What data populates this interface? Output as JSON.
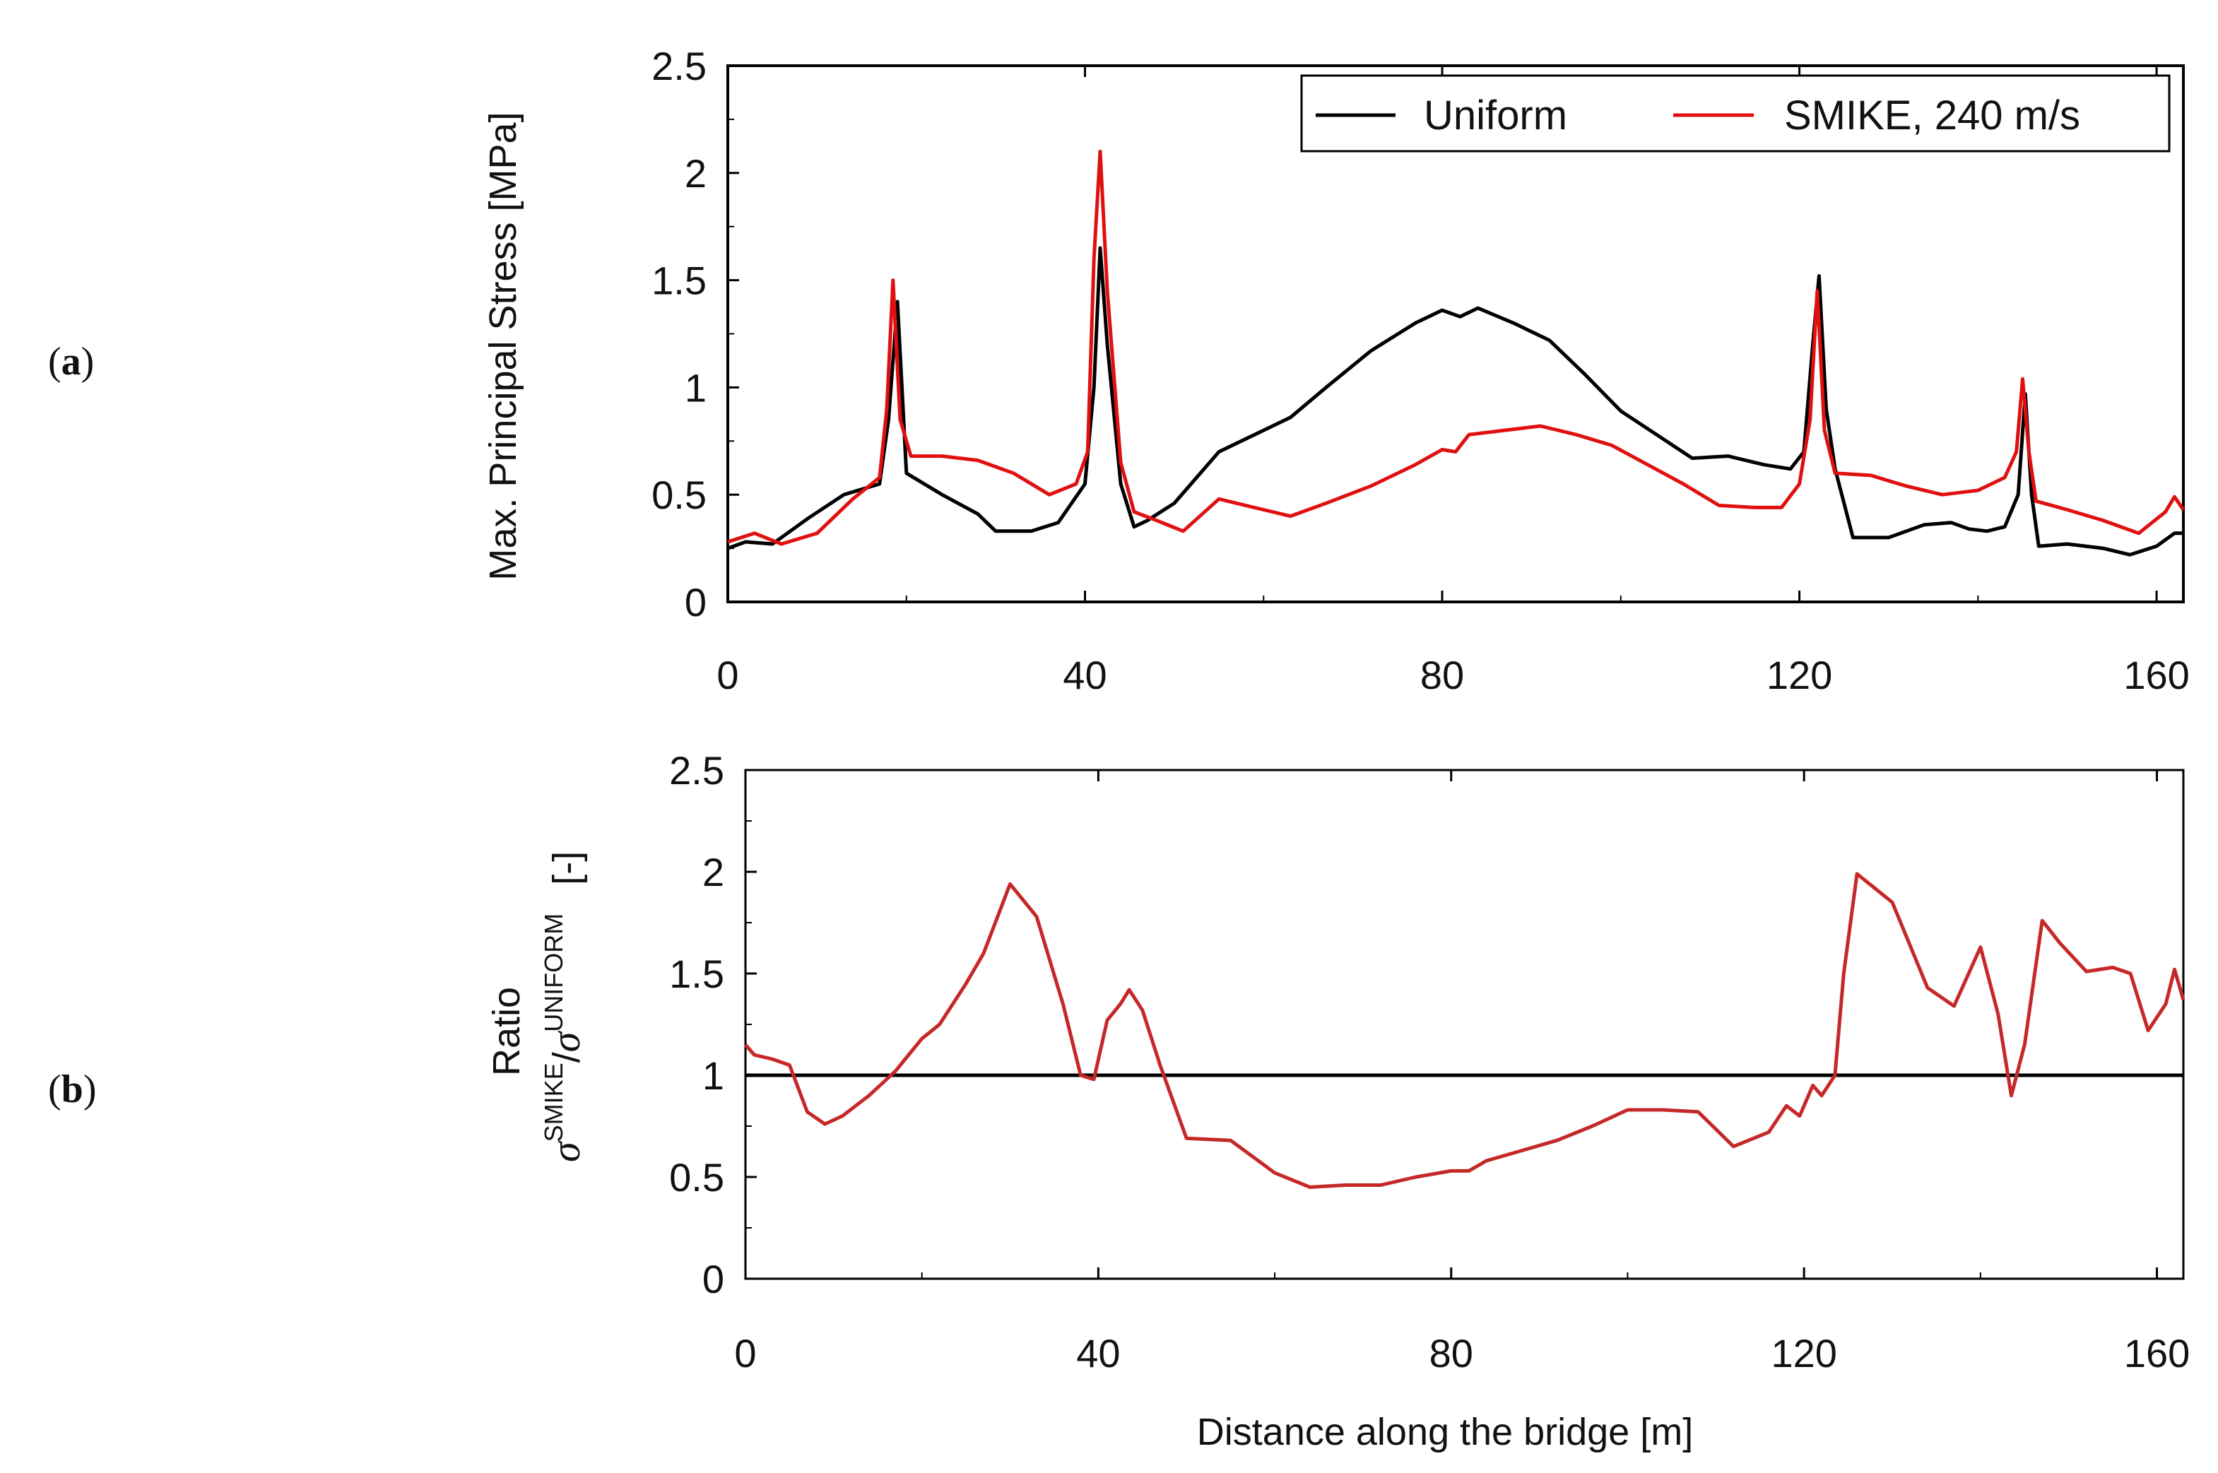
{
  "chart_data": [
    {
      "type": "line",
      "panel_label": "(a)",
      "panel_letter": "a",
      "xlabel": "",
      "ylabel": "Max. Principal Stress [MPa]",
      "xlim": [
        0,
        163
      ],
      "ylim": [
        0,
        2.5
      ],
      "xticks": [
        0,
        40,
        80,
        120,
        160
      ],
      "xtick_labels": [
        "0",
        "40",
        "80",
        "120",
        "160"
      ],
      "yticks": [
        0,
        0.5,
        1,
        1.5,
        2,
        2.5
      ],
      "ytick_labels": [
        "0",
        "0.5",
        "1",
        "1.5",
        "2",
        "2.5"
      ],
      "legend_position": "top-right",
      "series": [
        {
          "name": "Uniform",
          "color": "#000000",
          "x": [
            0,
            2,
            5,
            9,
            13,
            17,
            18,
            19,
            20,
            24,
            28,
            30,
            34,
            37,
            40,
            41,
            41.7,
            42.5,
            44,
            45.5,
            47,
            50,
            55,
            60,
            63,
            67,
            72,
            77,
            80,
            82,
            84,
            88,
            92,
            96,
            100,
            104,
            108,
            112,
            116,
            119,
            120.5,
            121.5,
            122.2,
            123,
            124,
            126,
            130,
            134,
            137,
            139,
            141,
            143,
            144.5,
            145.3,
            146,
            146.8,
            150,
            154,
            157,
            160,
            162,
            163
          ],
          "y": [
            0.25,
            0.28,
            0.27,
            0.39,
            0.5,
            0.55,
            0.85,
            1.4,
            0.6,
            0.5,
            0.41,
            0.33,
            0.33,
            0.37,
            0.55,
            1.0,
            1.65,
            1.2,
            0.55,
            0.35,
            0.38,
            0.46,
            0.7,
            0.8,
            0.86,
            1.0,
            1.17,
            1.3,
            1.36,
            1.33,
            1.37,
            1.3,
            1.22,
            1.06,
            0.89,
            0.78,
            0.67,
            0.68,
            0.64,
            0.62,
            0.7,
            1.2,
            1.52,
            0.9,
            0.62,
            0.3,
            0.3,
            0.36,
            0.37,
            0.34,
            0.33,
            0.35,
            0.5,
            0.97,
            0.5,
            0.26,
            0.27,
            0.25,
            0.22,
            0.26,
            0.32,
            0.32
          ]
        },
        {
          "name": "SMIKE, 240 m/s",
          "color": "#e01010",
          "x": [
            0,
            3,
            6,
            10,
            14,
            17,
            17.8,
            18.5,
            19.3,
            20.5,
            24,
            28,
            32,
            36,
            39,
            40.3,
            41,
            41.7,
            42.5,
            44,
            45.5,
            48,
            51,
            55,
            60,
            63,
            67,
            72,
            77,
            80,
            81.5,
            83,
            87,
            91,
            95,
            99,
            103,
            107,
            111,
            115,
            118,
            120,
            121.2,
            122,
            122.8,
            124,
            128,
            132,
            136,
            140,
            143,
            144.3,
            145,
            145.7,
            146.5,
            150,
            154,
            158,
            161,
            162,
            163
          ],
          "y": [
            0.28,
            0.32,
            0.27,
            0.32,
            0.48,
            0.58,
            0.9,
            1.5,
            0.85,
            0.68,
            0.68,
            0.66,
            0.6,
            0.5,
            0.55,
            0.7,
            1.6,
            2.1,
            1.45,
            0.65,
            0.42,
            0.38,
            0.33,
            0.48,
            0.43,
            0.4,
            0.46,
            0.54,
            0.64,
            0.71,
            0.7,
            0.78,
            0.8,
            0.82,
            0.78,
            0.73,
            0.64,
            0.55,
            0.45,
            0.44,
            0.44,
            0.55,
            0.85,
            1.45,
            0.8,
            0.6,
            0.59,
            0.54,
            0.5,
            0.52,
            0.58,
            0.7,
            1.04,
            0.7,
            0.47,
            0.43,
            0.38,
            0.32,
            0.42,
            0.49,
            0.43
          ]
        }
      ]
    },
    {
      "type": "line",
      "panel_label": "(b)",
      "panel_letter": "b",
      "xlabel": "Distance along the bridge [m]",
      "ylabel": "Ratio",
      "ylabel_sub": {
        "sigma": "σ",
        "sup1": "SMIKE",
        "slash": "/",
        "sup2": "UNIFORM",
        "unit": "[-]"
      },
      "xlim": [
        0,
        163
      ],
      "ylim": [
        0,
        2.5
      ],
      "xticks": [
        0,
        40,
        80,
        120,
        160
      ],
      "xtick_labels": [
        "0",
        "40",
        "80",
        "120",
        "160"
      ],
      "yticks": [
        0,
        0.5,
        1,
        1.5,
        2,
        2.5
      ],
      "ytick_labels": [
        "0",
        "0.5",
        "1",
        "1.5",
        "2",
        "2.5"
      ],
      "reference_line": 1,
      "series": [
        {
          "name": "Ratio",
          "color": "#c62828",
          "x": [
            0,
            1,
            3,
            5,
            7,
            9,
            11,
            14,
            17,
            20,
            22,
            25,
            27,
            30,
            33,
            36,
            38,
            39.5,
            41,
            42.5,
            43.5,
            45,
            47,
            50,
            55,
            60,
            64,
            68,
            72,
            76,
            80,
            82,
            84,
            88,
            92,
            96,
            100,
            104,
            108,
            112,
            116,
            118,
            119.5,
            121,
            122,
            123.5,
            124.5,
            126,
            128,
            130,
            134,
            137,
            140,
            142,
            143.5,
            145,
            147,
            149,
            152,
            155,
            157,
            159,
            161,
            162,
            163
          ],
          "y": [
            1.15,
            1.1,
            1.08,
            1.05,
            0.82,
            0.76,
            0.8,
            0.9,
            1.02,
            1.18,
            1.25,
            1.45,
            1.6,
            1.94,
            1.78,
            1.35,
            1.0,
            0.98,
            1.27,
            1.35,
            1.42,
            1.32,
            1.05,
            0.69,
            0.68,
            0.52,
            0.45,
            0.46,
            0.46,
            0.5,
            0.53,
            0.53,
            0.58,
            0.63,
            0.68,
            0.75,
            0.83,
            0.83,
            0.82,
            0.65,
            0.72,
            0.85,
            0.8,
            0.95,
            0.9,
            1.0,
            1.5,
            1.99,
            1.92,
            1.85,
            1.43,
            1.34,
            1.63,
            1.3,
            0.9,
            1.15,
            1.76,
            1.65,
            1.51,
            1.53,
            1.5,
            1.22,
            1.35,
            1.52,
            1.37
          ]
        }
      ]
    }
  ]
}
